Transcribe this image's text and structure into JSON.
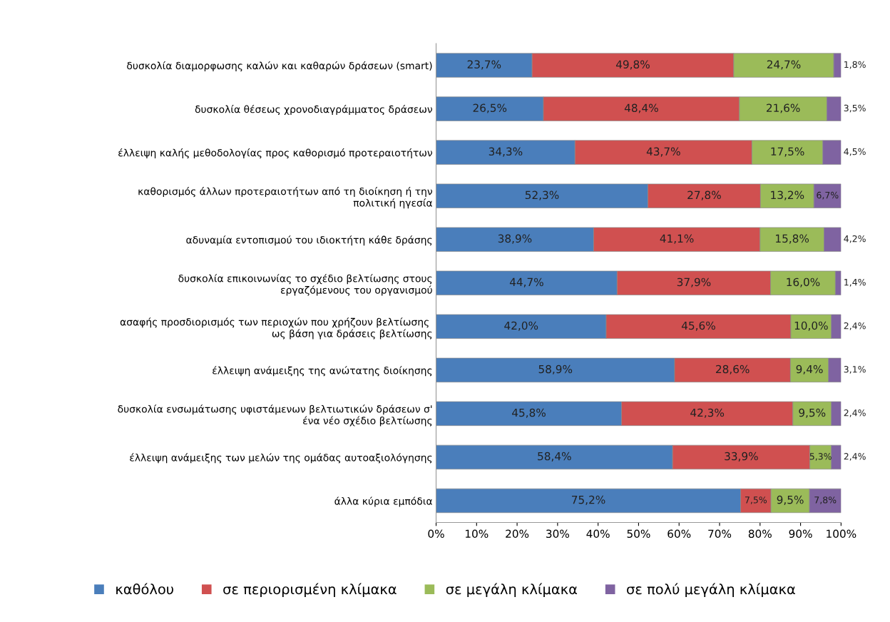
{
  "chart_data": {
    "type": "bar",
    "orientation": "horizontal",
    "stacked": true,
    "categories": [
      "δυσκολία διαμορφωσης καλών και καθαρών δράσεων (smart)",
      "δυσκολία θέσεως χρονοδιαγράμματος δράσεων",
      "έλλειψη καλής μεθοδολογίας προς καθορισμό προτεραιοτήτων",
      "καθορισμός άλλων προτεραιοτήτων από τη διοίκηση ή την πολιτική ηγεσία",
      "αδυναμία εντοπισμού του ιδιοκτήτη κάθε δράσης",
      "δυσκολία επικοινωνίας το σχέδιο βελτίωσης στους εργαζόμενους του οργανισμού",
      "ασαφής προσδιορισμός των περιοχών που χρήζουν βελτίωσης  ως βάση για δράσεις βελτίωσης",
      "έλλειψη ανάμειξης της ανώτατης διοίκησης",
      "δυσκολία ενσωμάτωσης υφιστάμενων βελτιωτικών δράσεων σ' ένα νέο σχέδιο βελτίωσης",
      "έλλειψη ανάμειξης των μελών της ομάδας αυτοαξιολόγησης",
      "άλλα κύρια εμπόδια"
    ],
    "series": [
      {
        "name": "καθόλου",
        "color": "#4a7ebb",
        "values": [
          23.7,
          26.5,
          34.3,
          52.3,
          38.9,
          44.7,
          42.0,
          58.9,
          45.8,
          58.4,
          75.2
        ],
        "value_labels": [
          "23,7%",
          "26,5%",
          "34,3%",
          "52,3%",
          "38,9%",
          "44,7%",
          "42,0%",
          "58,9%",
          "45,8%",
          "58,4%",
          "75,2%"
        ]
      },
      {
        "name": "σε περιορισμένη κλίμακα",
        "color": "#d05050",
        "values": [
          49.8,
          48.4,
          43.7,
          27.8,
          41.1,
          37.9,
          45.6,
          28.6,
          42.3,
          33.9,
          7.5
        ],
        "value_labels": [
          "49,8%",
          "48,4%",
          "43,7%",
          "27,8%",
          "41,1%",
          "37,9%",
          "45,6%",
          "28,6%",
          "42,3%",
          "33,9%",
          "7,5%"
        ]
      },
      {
        "name": "σε μεγάλη κλίμακα",
        "color": "#9bbb59",
        "values": [
          24.7,
          21.6,
          17.5,
          13.2,
          15.8,
          16.0,
          10.0,
          9.4,
          9.5,
          5.3,
          9.5
        ],
        "value_labels": [
          "24,7%",
          "21,6%",
          "17,5%",
          "13,2%",
          "15,8%",
          "16,0%",
          "10,0%",
          "9,4%",
          "9,5%",
          "5,3%",
          "9,5%"
        ]
      },
      {
        "name": "σε πολύ μεγάλη κλίμακα",
        "color": "#7f63a1",
        "values": [
          1.8,
          3.5,
          4.5,
          6.7,
          4.2,
          1.4,
          2.4,
          3.1,
          2.4,
          2.4,
          7.8
        ],
        "value_labels": [
          "1,8%",
          "3,5%",
          "4,5%",
          "6,7%",
          "4,2%",
          "1,4%",
          "2,4%",
          "3,1%",
          "2,4%",
          "2,4%",
          "7,8%"
        ]
      }
    ],
    "xlim": [
      0,
      100
    ],
    "xticks": [
      {
        "value": 0,
        "label": "0%"
      },
      {
        "value": 10,
        "label": "10%"
      },
      {
        "value": 20,
        "label": "20%"
      },
      {
        "value": 30,
        "label": "30%"
      },
      {
        "value": 40,
        "label": "40%"
      },
      {
        "value": 50,
        "label": "50%"
      },
      {
        "value": 60,
        "label": "60%"
      },
      {
        "value": 70,
        "label": "70%"
      },
      {
        "value": 80,
        "label": "80%"
      },
      {
        "value": 90,
        "label": "90%"
      },
      {
        "value": 100,
        "label": "100%"
      }
    ],
    "grid": false,
    "legend": "bottom"
  }
}
